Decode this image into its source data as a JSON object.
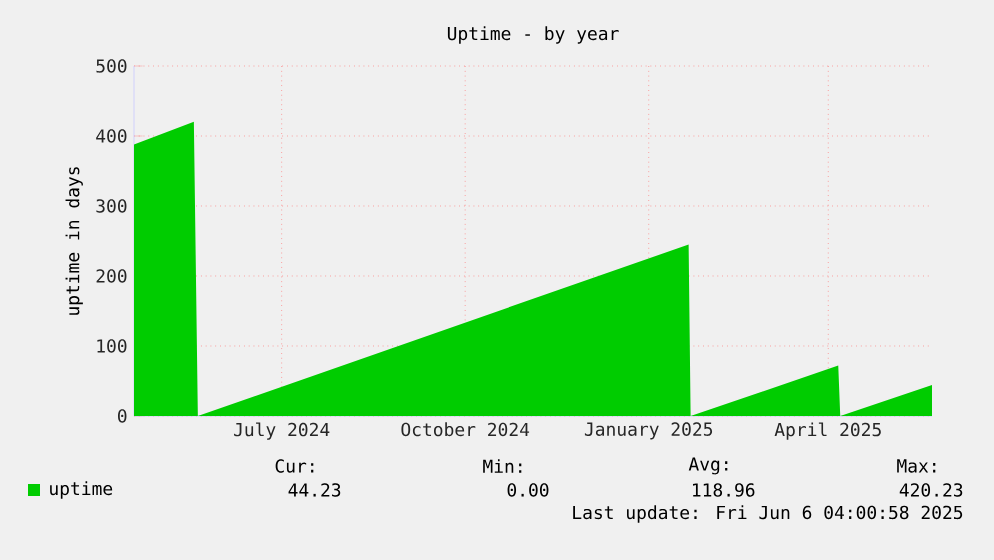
{
  "chart_data": {
    "type": "area",
    "title": "Uptime - by year",
    "ylabel": "uptime in days",
    "x": [
      "2024-05-02",
      "2024-06-01",
      "2024-06-03",
      "2025-02-04",
      "2025-02-05",
      "2025-04-20",
      "2025-04-21",
      "2025-06-06"
    ],
    "series": [
      {
        "name": "uptime",
        "color": "#00cc00",
        "values": [
          388,
          420.23,
          0,
          245,
          0,
          72,
          0,
          44.23
        ]
      }
    ],
    "xlim": [
      "2024-05-02",
      "2025-06-06"
    ],
    "ylim": [
      0,
      500
    ],
    "xticks": [
      {
        "value": "2024-07-15",
        "label": "July 2024"
      },
      {
        "value": "2024-10-15",
        "label": "October 2024"
      },
      {
        "value": "2025-01-15",
        "label": "January 2025"
      },
      {
        "value": "2025-04-15",
        "label": "April 2025"
      }
    ],
    "yticks": [
      0,
      100,
      200,
      300,
      400,
      500
    ],
    "grid": true,
    "legend": "bottom left",
    "annotations": [
      "Cur:",
      "Min:",
      "Avg:",
      "Max:",
      "44.23",
      "0.00",
      "118.96",
      "420.23",
      "Last update: Fri Jun  6 04:00:58 2025"
    ]
  }
}
